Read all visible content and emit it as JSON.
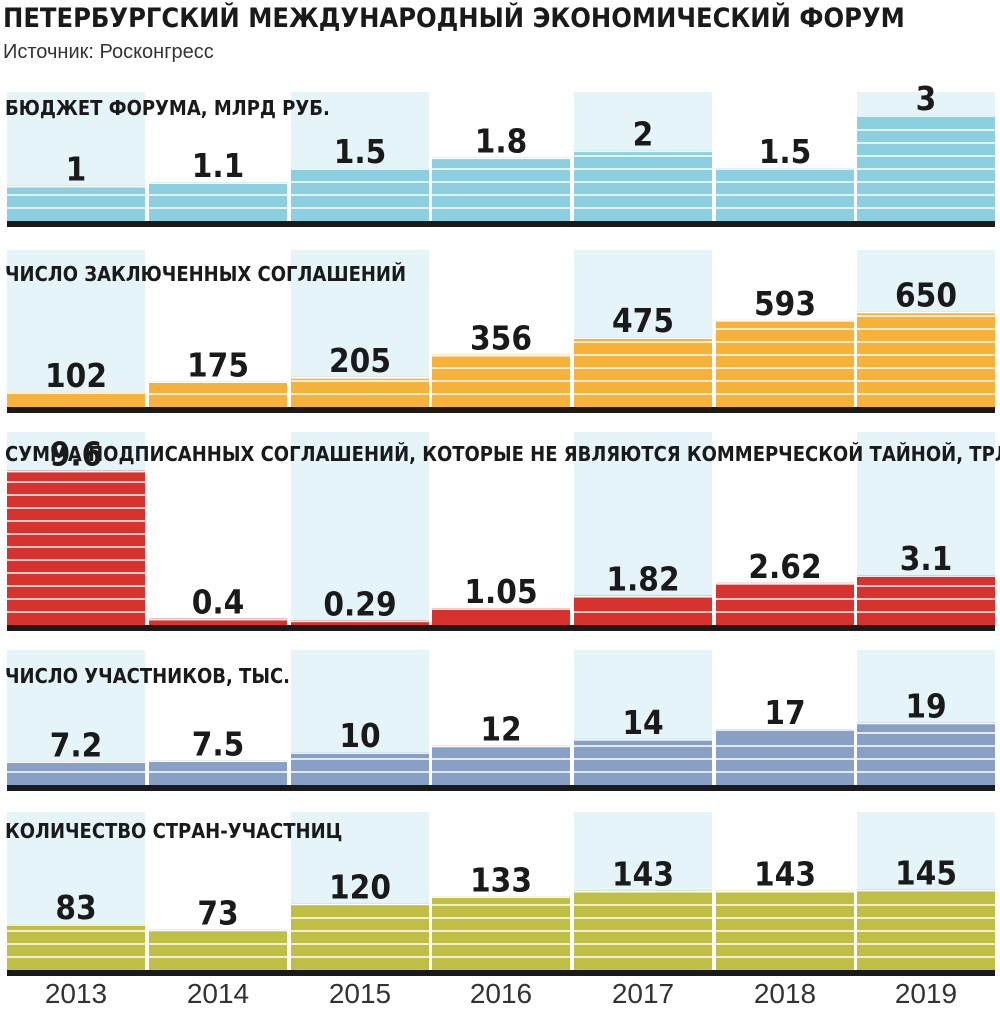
{
  "header": {
    "title": "ПЕТЕРБУРГСКИЙ МЕЖДУНАРОДНЫЙ ЭКОНОМИЧЕСКИЙ ФОРУМ",
    "source": "Источник: Росконгресс"
  },
  "colors": {
    "column_bg": "#e4f4f9",
    "baseline": "#1a1a1a",
    "stripe": "#ffffff"
  },
  "chart_data": [
    {
      "type": "bar",
      "title": "БЮДЖЕТ ФОРУМА, МЛРД РУБ.",
      "categories": [
        "2013",
        "2014",
        "2015",
        "2016",
        "2017",
        "2018",
        "2019"
      ],
      "values": [
        1,
        1.1,
        1.5,
        1.8,
        2,
        1.5,
        3
      ],
      "labels": [
        "1",
        "1.1",
        "1.5",
        "1.8",
        "2",
        "1.5",
        "3"
      ],
      "color": "#8ccfe0",
      "ylim": [
        0,
        3.65
      ]
    },
    {
      "type": "bar",
      "title": "ЧИСЛО ЗАКЛЮЧЕННЫХ СОГЛАШЕНИЙ",
      "categories": [
        "2013",
        "2014",
        "2015",
        "2016",
        "2017",
        "2018",
        "2019"
      ],
      "values": [
        102,
        175,
        205,
        356,
        475,
        593,
        650
      ],
      "labels": [
        "102",
        "175",
        "205",
        "356",
        "475",
        "593",
        "650"
      ],
      "color": "#f7b23b",
      "ylim": [
        0,
        1069
      ]
    },
    {
      "type": "bar",
      "title": "СУММА ПОДПИСАННЫХ СОГЛАШЕНИЙ, КОТОРЫЕ НЕ ЯВЛЯЮТСЯ КОММЕРЧЕСКОЙ ТАЙНОЙ, ТРЛН РУБ.",
      "categories": [
        "2013",
        "2014",
        "2015",
        "2016",
        "2017",
        "2018",
        "2019"
      ],
      "values": [
        9.6,
        0.4,
        0.29,
        1.05,
        1.82,
        2.62,
        3.1
      ],
      "labels": [
        "9.6",
        "0.4",
        "0.29",
        "1.05",
        "1.82",
        "2.62",
        "3.1"
      ],
      "color": "#d8322f",
      "ylim": [
        0,
        12
      ]
    },
    {
      "type": "bar",
      "title": "ЧИСЛО УЧАСТНИКОВ, ТЫС.",
      "categories": [
        "2013",
        "2014",
        "2015",
        "2016",
        "2017",
        "2018",
        "2019"
      ],
      "values": [
        7.2,
        7.5,
        10,
        12,
        14,
        17,
        19
      ],
      "labels": [
        "7.2",
        "7.5",
        "10",
        "12",
        "14",
        "17",
        "19"
      ],
      "color": "#89a0c6",
      "ylim": [
        0,
        41
      ]
    },
    {
      "type": "bar",
      "title": "КОЛИЧЕСТВО СТРАН-УЧАСТНИЦ",
      "categories": [
        "2013",
        "2014",
        "2015",
        "2016",
        "2017",
        "2018",
        "2019"
      ],
      "values": [
        83,
        73,
        120,
        133,
        143,
        143,
        145
      ],
      "labels": [
        "83",
        "73",
        "120",
        "133",
        "143",
        "143",
        "145"
      ],
      "color": "#bfbf45",
      "ylim": [
        0,
        285
      ]
    }
  ],
  "x_axis": {
    "labels": [
      "2013",
      "2014",
      "2015",
      "2016",
      "2017",
      "2018",
      "2019"
    ]
  }
}
